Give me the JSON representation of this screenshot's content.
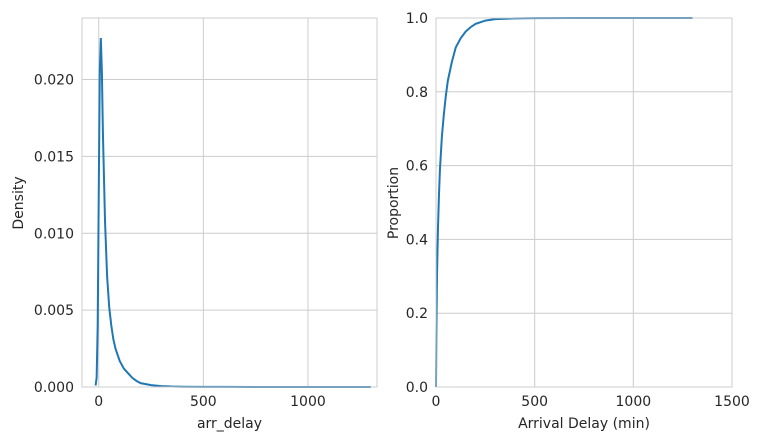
{
  "chart_data": [
    {
      "type": "line",
      "plot": "kde",
      "title": "",
      "xlabel": "arr_delay",
      "ylabel": "Density",
      "xlim": [
        -80,
        1330
      ],
      "ylim": [
        0,
        0.024
      ],
      "grid": true,
      "x_ticks": [
        0,
        500,
        1000
      ],
      "x_tick_labels": [
        "0",
        "500",
        "1000"
      ],
      "y_ticks": [
        0.0,
        0.005,
        0.01,
        0.015,
        0.02
      ],
      "y_tick_labels": [
        "0.000",
        "0.005",
        "0.010",
        "0.015",
        "0.020"
      ],
      "color": "#1f77b4",
      "series": [
        {
          "x": [
            -15,
            -10,
            -5,
            0,
            5,
            10,
            15,
            20,
            30,
            40,
            50,
            60,
            70,
            80,
            100,
            120,
            140,
            160,
            180,
            200,
            250,
            300,
            350,
            400,
            500,
            600,
            800,
            1000,
            1200,
            1300
          ],
          "y": [
            0.0001,
            0.0006,
            0.004,
            0.0125,
            0.0205,
            0.0227,
            0.0205,
            0.0165,
            0.0108,
            0.0072,
            0.0052,
            0.004,
            0.0031,
            0.0025,
            0.0017,
            0.0012,
            0.0009,
            0.0006,
            0.0004,
            0.00025,
            0.00012,
            6e-05,
            3e-05,
            2e-05,
            1e-05,
            1e-05,
            0.0,
            0.0,
            0.0,
            0.0
          ]
        }
      ]
    },
    {
      "type": "line",
      "plot": "ecdf",
      "title": "",
      "xlabel": "Arrival Delay (min)",
      "ylabel": "Proportion",
      "xlim": [
        0,
        1500
      ],
      "ylim": [
        0,
        1.0
      ],
      "grid": true,
      "x_ticks": [
        0,
        500,
        1000,
        1500
      ],
      "x_tick_labels": [
        "0",
        "500",
        "1000",
        "1500"
      ],
      "y_ticks": [
        0.0,
        0.2,
        0.4,
        0.6,
        0.8,
        1.0
      ],
      "y_tick_labels": [
        "0.0",
        "0.2",
        "0.4",
        "0.6",
        "0.8",
        "1.0"
      ],
      "color": "#1f77b4",
      "series": [
        {
          "x": [
            0,
            2,
            5,
            10,
            15,
            20,
            30,
            40,
            50,
            60,
            80,
            100,
            125,
            150,
            175,
            200,
            250,
            300,
            400,
            500,
            700,
            1000,
            1300
          ],
          "y": [
            0.0,
            0.15,
            0.3,
            0.43,
            0.52,
            0.59,
            0.68,
            0.74,
            0.79,
            0.83,
            0.88,
            0.92,
            0.945,
            0.963,
            0.975,
            0.984,
            0.993,
            0.997,
            0.999,
            0.9995,
            0.9999,
            1.0,
            1.0
          ]
        }
      ]
    }
  ]
}
